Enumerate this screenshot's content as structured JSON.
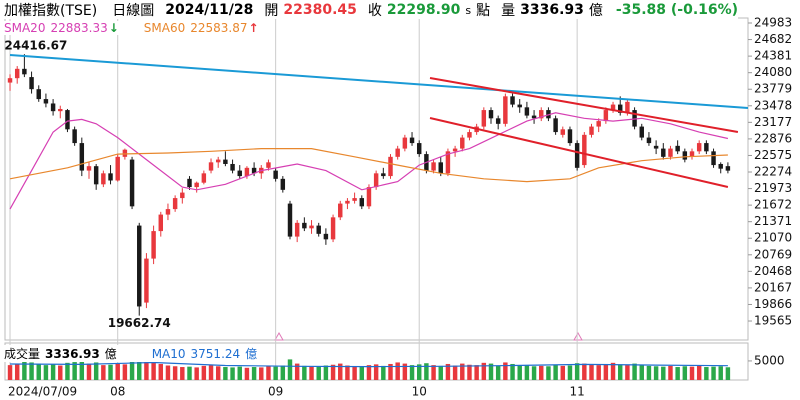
{
  "chart_data": {
    "type": "candlestick",
    "header": {
      "name": "加權指數(TSE)",
      "period": "日線圖",
      "date": "2024/11/28",
      "open_label": "開",
      "open": 22380.45,
      "close_label": "收",
      "close": {
        "value": 22298.9,
        "label": "22298.90"
      },
      "flag": "s",
      "unit": "點",
      "volume_label": "量",
      "volume": 3336.93,
      "volume_unit": "億",
      "change": "-35.88 (-0.16%)"
    },
    "categories": [
      "2024/07/09",
      null,
      null,
      null,
      null,
      null,
      null,
      null,
      null,
      null,
      null,
      null,
      null,
      null,
      null,
      "08",
      null,
      null,
      null,
      null,
      null,
      null,
      null,
      null,
      null,
      null,
      null,
      null,
      null,
      null,
      null,
      null,
      null,
      null,
      null,
      null,
      null,
      "09",
      null,
      null,
      null,
      null,
      null,
      null,
      null,
      null,
      null,
      null,
      null,
      null,
      null,
      null,
      null,
      null,
      null,
      null,
      null,
      "10",
      null,
      null,
      null,
      null,
      null,
      null,
      null,
      null,
      null,
      null,
      null,
      null,
      null,
      null,
      null,
      null,
      null,
      null,
      null,
      null,
      null,
      "11",
      null,
      null,
      null,
      null,
      null,
      null,
      null,
      null,
      null,
      null,
      null,
      null,
      null,
      null,
      null,
      null,
      null,
      null,
      null,
      null,
      null
    ],
    "open": [
      23900,
      23980,
      24150,
      24000,
      23780,
      23600,
      23520,
      23380,
      23400,
      23050,
      22800,
      22300,
      22380,
      22050,
      22250,
      22120,
      22550,
      22500,
      21300,
      19900,
      20700,
      21200,
      21500,
      21600,
      21800,
      22150,
      22000,
      22080,
      22300,
      22450,
      22500,
      22420,
      22300,
      22200,
      22350,
      22250,
      22350,
      22300,
      22150,
      21700,
      21100,
      21350,
      21250,
      21300,
      21150,
      21050,
      21450,
      21700,
      21750,
      21800,
      21650,
      22000,
      22250,
      22200,
      22550,
      22700,
      22900,
      22800,
      22600,
      22300,
      22450,
      22250,
      22650,
      22700,
      22900,
      23000,
      23100,
      23400,
      23250,
      23150,
      23650,
      23500,
      23450,
      23300,
      23250,
      23400,
      23250,
      22950,
      23050,
      22800,
      22400,
      22950,
      23100,
      23200,
      23400,
      23500,
      23350,
      23400,
      23100,
      22900,
      22750,
      22700,
      22550,
      22750,
      22650,
      22550,
      22650,
      22800,
      22650,
      22420,
      22380.45
    ],
    "high": [
      24050,
      24200,
      24416.67,
      24100,
      23850,
      23700,
      23600,
      23480,
      23420,
      23100,
      22900,
      22450,
      22420,
      22300,
      22400,
      22600,
      22700,
      22550,
      21350,
      20800,
      21300,
      21550,
      21700,
      21850,
      21980,
      22200,
      22100,
      22300,
      22520,
      22550,
      22650,
      22500,
      22400,
      22380,
      22450,
      22400,
      22500,
      22350,
      22200,
      21750,
      21400,
      21450,
      21400,
      21350,
      21250,
      21500,
      21750,
      21800,
      21900,
      21850,
      22050,
      22300,
      22350,
      22600,
      22750,
      22950,
      23000,
      22850,
      22650,
      22500,
      22550,
      22700,
      22750,
      22950,
      23050,
      23150,
      23450,
      23450,
      23300,
      23700,
      23700,
      23600,
      23550,
      23400,
      23450,
      23450,
      23300,
      23100,
      23100,
      22850,
      23000,
      23150,
      23250,
      23450,
      23550,
      23650,
      23600,
      23450,
      23150,
      23000,
      22850,
      22800,
      22750,
      22850,
      22700,
      22700,
      22850,
      22850,
      22700,
      22450,
      22450
    ],
    "low": [
      23750,
      23880,
      24000,
      23700,
      23550,
      23450,
      23300,
      23250,
      23000,
      22750,
      22200,
      22150,
      21950,
      22000,
      22050,
      22100,
      22500,
      21600,
      19662.74,
      19800,
      20600,
      21100,
      21400,
      21550,
      21700,
      21950,
      21900,
      22050,
      22250,
      22350,
      22380,
      22250,
      22150,
      22150,
      22200,
      22150,
      22300,
      22100,
      21900,
      21050,
      21000,
      21200,
      21150,
      21100,
      20950,
      21000,
      21400,
      21600,
      21700,
      21600,
      21600,
      21950,
      22150,
      22150,
      22500,
      22650,
      22750,
      22550,
      22250,
      22250,
      22200,
      22200,
      22550,
      22650,
      22850,
      22950,
      23050,
      23150,
      23050,
      23100,
      23450,
      23350,
      23250,
      23150,
      23200,
      23200,
      22950,
      22900,
      22750,
      22300,
      22350,
      22900,
      23000,
      23150,
      23350,
      23300,
      23300,
      23050,
      22850,
      22750,
      22600,
      22500,
      22500,
      22600,
      22450,
      22500,
      22600,
      22600,
      22350,
      22250,
      22250
    ],
    "close": [
      23980,
      24150,
      24050,
      23780,
      23600,
      23520,
      23380,
      23420,
      23050,
      22800,
      22300,
      22380,
      22050,
      22250,
      22120,
      22550,
      22680,
      21650,
      19830,
      20700,
      21200,
      21500,
      21600,
      21800,
      21900,
      22000,
      22080,
      22250,
      22450,
      22500,
      22420,
      22300,
      22200,
      22350,
      22250,
      22350,
      22450,
      22150,
      21950,
      21100,
      21350,
      21250,
      21300,
      21150,
      21050,
      21450,
      21700,
      21750,
      21800,
      21650,
      22000,
      22250,
      22200,
      22550,
      22700,
      22900,
      22800,
      22600,
      22300,
      22450,
      22250,
      22650,
      22700,
      22900,
      23000,
      23100,
      23400,
      23250,
      23150,
      23650,
      23500,
      23450,
      23300,
      23250,
      23400,
      23250,
      23000,
      23050,
      22800,
      22350,
      22950,
      23100,
      23200,
      23400,
      23500,
      23350,
      23550,
      23100,
      22900,
      22800,
      22700,
      22550,
      22700,
      22650,
      22500,
      22650,
      22800,
      22650,
      22400,
      22334.78,
      22298.9
    ],
    "up_color": "#e8383d",
    "down_color": "#1a1a1a",
    "xlim": [
      -0.7,
      102.8
    ],
    "ylim": [
      19220,
      25074
    ],
    "yticks": [
      24983,
      24682,
      24381,
      24080,
      23779,
      23478,
      23177,
      22876,
      22575,
      22274,
      21973,
      21672,
      21371,
      21070,
      20769,
      20468,
      20167,
      19866,
      19565
    ],
    "overlays": [
      {
        "name": "SMA20",
        "color": "#d63fb3",
        "legend_value": 22883.33,
        "arrow": "↓",
        "arrow_color": "#1a9a3a",
        "x": [
          0,
          3,
          6,
          8,
          10,
          12,
          15,
          19,
          24,
          26,
          30,
          35,
          40,
          44,
          49,
          54,
          57,
          61,
          64,
          68,
          72,
          76,
          80,
          84,
          88,
          92,
          96,
          100
        ],
        "values": [
          21600,
          22300,
          23000,
          23200,
          23230,
          23150,
          22900,
          22500,
          22000,
          21950,
          22050,
          22300,
          22420,
          22300,
          21950,
          22100,
          22400,
          22600,
          22700,
          22950,
          23200,
          23350,
          23250,
          23200,
          23250,
          23150,
          23000,
          22883.33
        ]
      },
      {
        "name": "SMA60",
        "color": "#e8872d",
        "legend_value": 22583.87,
        "arrow": "↑",
        "arrow_color": "#e8383d",
        "x": [
          0,
          8,
          15,
          22,
          28,
          35,
          42,
          48,
          54,
          60,
          66,
          72,
          78,
          82,
          88,
          94,
          100
        ],
        "values": [
          22150,
          22350,
          22600,
          22620,
          22650,
          22700,
          22700,
          22550,
          22400,
          22250,
          22150,
          22100,
          22150,
          22350,
          22480,
          22550,
          22583.87
        ]
      }
    ],
    "trendlines": [
      {
        "color": "#1a9ad6",
        "x": [
          0,
          102.8
        ],
        "values": [
          24401,
          23438
        ]
      },
      {
        "color": "#e0202a",
        "x": [
          58.5,
          101.4
        ],
        "values": [
          23983,
          23001
        ]
      },
      {
        "color": "#e0202a",
        "x": [
          58.5,
          100
        ],
        "values": [
          23256,
          22001
        ]
      }
    ],
    "annotations": [
      {
        "x": 2,
        "value": 24416.67,
        "position": "above"
      },
      {
        "x": 18,
        "value": 19662.74,
        "position": "below"
      }
    ],
    "volume": {
      "label": "成交量",
      "unit": "億",
      "last": 3336.93,
      "up_color": "#e8383d",
      "down_color": "#2aa84a",
      "ylim": [
        0,
        9700
      ],
      "yticks": [
        5000
      ],
      "values": [
        3900,
        4200,
        4800,
        4600,
        4300,
        3900,
        4100,
        3800,
        4500,
        4700,
        5200,
        4300,
        4600,
        3900,
        4000,
        4400,
        4100,
        5300,
        6900,
        5600,
        4700,
        4200,
        3800,
        3600,
        3400,
        3500,
        3300,
        3700,
        3900,
        3600,
        3400,
        3300,
        3500,
        3200,
        3400,
        3300,
        3600,
        3500,
        3800,
        5400,
        4300,
        3700,
        3500,
        3600,
        3800,
        4000,
        4300,
        3800,
        3600,
        3500,
        3900,
        4100,
        3700,
        4200,
        4600,
        4300,
        3900,
        4100,
        4400,
        3900,
        3700,
        4200,
        3800,
        4300,
        4000,
        3900,
        4500,
        4300,
        3800,
        4600,
        4200,
        3900,
        3800,
        3600,
        3700,
        3600,
        3900,
        3700,
        3800,
        4400,
        4300,
        4100,
        3900,
        4200,
        4500,
        4100,
        3900,
        4300,
        4000,
        3700,
        3600,
        3500,
        3700,
        3400,
        3600,
        3500,
        3700,
        3400,
        3500,
        3600,
        3336.93
      ],
      "ma": {
        "name": "MA10",
        "color": "#1f6fd1",
        "last": 3751.24,
        "x": [
          0,
          10,
          20,
          30,
          40,
          50,
          60,
          70,
          80,
          90,
          100
        ],
        "values": [
          4200,
          4100,
          4600,
          3800,
          3600,
          3500,
          3600,
          3800,
          4100,
          3900,
          3751.24
        ]
      }
    }
  }
}
